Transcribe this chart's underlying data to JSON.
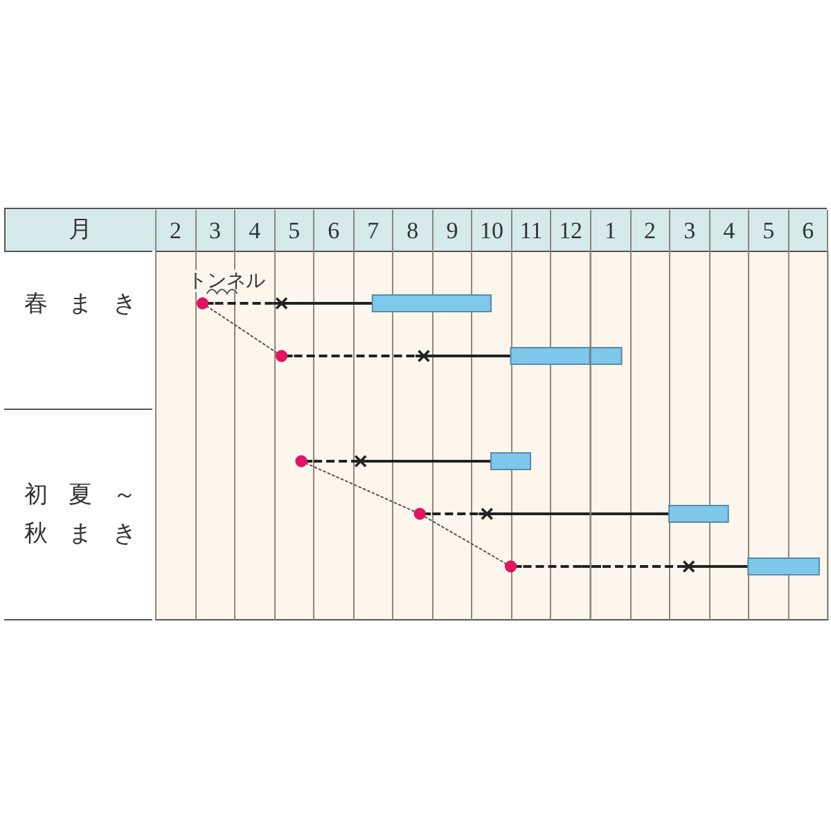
{
  "chart_data": [
    {
      "type": "bar",
      "orientation": "horizontal",
      "xlabel": "月",
      "categories": [
        "春まき",
        null,
        null,
        null,
        "初夏～秋まき",
        null
      ],
      "xlim": [
        1.5,
        12.5
      ],
      "xticks": [
        {
          "value": 1.5,
          "label": null
        },
        2,
        {
          "value": 2.5,
          "label": null
        },
        3,
        {
          "value": 3.5,
          "label": null
        },
        4,
        {
          "value": 4.5,
          "label": null
        },
        5,
        {
          "value": 5.5,
          "label": null
        },
        6,
        {
          "value": 6.5,
          "label": null
        },
        7,
        {
          "value": 7.5,
          "label": null
        },
        8,
        {
          "value": 8.5,
          "label": null
        },
        9,
        {
          "value": 9.5,
          "label": null
        },
        10,
        {
          "value": 10.5,
          "label": null
        },
        11,
        {
          "value": 11.5,
          "label": null
        },
        12,
        {
          "value": 12.5,
          "label": null
        }
      ],
      "grid": "x",
      "annotations": [
        {
          "text": "トンネル",
          "x": 3.3,
          "y": "春まき"
        }
      ],
      "series": [
        {
          "type": "line",
          "line_style": "dotted",
          "color": "#555555",
          "values": [
            2.7,
            4.7,
            null,
            null,
            null,
            null
          ]
        },
        {
          "type": "line",
          "line_style": "dotted",
          "color": "#555555",
          "values": [
            null,
            null,
            null,
            5.2,
            8.2,
            10.5
          ]
        },
        {
          "type": "bar",
          "line_style": "dashed",
          "color": "#222222",
          "base": [
            2.7,
            4.7,
            null,
            5.2,
            8.2,
            10.5
          ],
          "values": [
            2.0,
            3.6,
            null,
            1.5,
            1.7,
            2.0
          ]
        },
        {
          "type": "bar",
          "line_style": "solid",
          "color": "#222222",
          "base": [
            4.7,
            8.3,
            null,
            6.7,
            9.9,
            null
          ],
          "values": [
            2.3,
            2.2,
            null,
            3.3,
            2.6,
            null
          ]
        },
        {
          "type": "bar",
          "color": "#7dc8eb",
          "base": [
            7.0,
            10.5,
            null,
            10.0,
            null,
            null
          ],
          "values": [
            3.0,
            2.0,
            null,
            1.0,
            null,
            null
          ]
        },
        {
          "type": "scatter",
          "marker": "circle",
          "color": "#e1145f",
          "values": [
            2.7,
            4.7,
            null,
            5.2,
            8.2,
            10.5
          ]
        },
        {
          "type": "scatter",
          "marker": "cross",
          "color": "#222222",
          "values": [
            4.7,
            8.3,
            null,
            6.7,
            9.9,
            null
          ]
        }
      ]
    },
    {
      "type": "bar",
      "orientation": "horizontal",
      "categories": [
        null,
        null,
        null,
        null,
        null,
        null
      ],
      "xlim": [
        0.5,
        6.5
      ],
      "xticks": [
        {
          "value": 0.5,
          "label": null
        },
        1,
        {
          "value": 1.5,
          "label": null
        },
        2,
        {
          "value": 2.5,
          "label": null
        },
        3,
        {
          "value": 3.5,
          "label": null
        },
        4,
        {
          "value": 4.5,
          "label": null
        },
        5,
        {
          "value": 5.5,
          "label": null
        },
        6,
        {
          "value": 6.5,
          "label": null
        }
      ],
      "grid": "x",
      "series": [
        {
          "type": "bar",
          "line_style": "dashed",
          "color": "#222222",
          "base": [
            null,
            null,
            null,
            null,
            null,
            0.5
          ],
          "values": [
            null,
            null,
            null,
            null,
            null,
            2.5
          ]
        },
        {
          "type": "bar",
          "line_style": "solid",
          "color": "#222222",
          "base": [
            null,
            null,
            null,
            null,
            0.5,
            3.0
          ],
          "values": [
            null,
            null,
            null,
            null,
            2.0,
            1.5
          ]
        },
        {
          "type": "bar",
          "color": "#7dc8eb",
          "base": [
            null,
            0.5,
            null,
            null,
            2.5,
            4.5
          ],
          "values": [
            null,
            0.8,
            null,
            null,
            1.5,
            1.8
          ]
        },
        {
          "type": "scatter",
          "marker": "cross",
          "color": "#222222",
          "values": [
            null,
            null,
            null,
            null,
            null,
            3.0
          ]
        }
      ]
    }
  ]
}
